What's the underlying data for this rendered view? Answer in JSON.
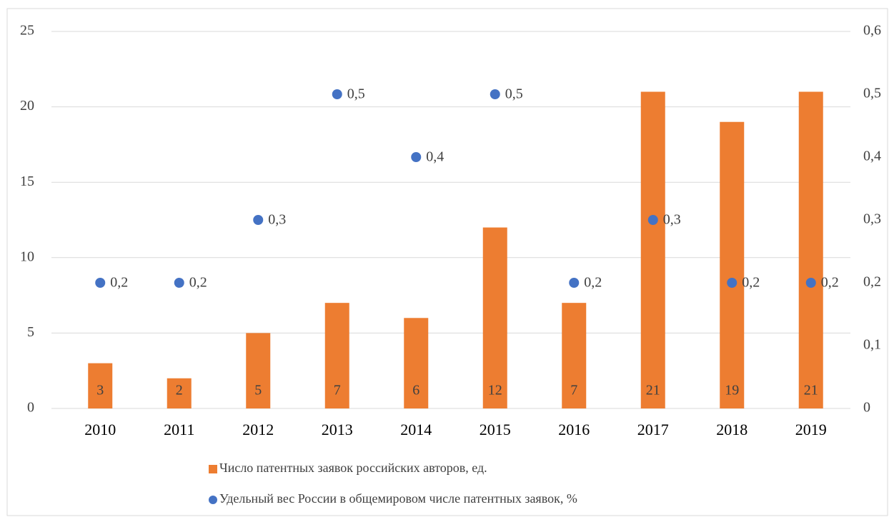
{
  "chart_data": {
    "type": "bar",
    "categories": [
      "2010",
      "2011",
      "2012",
      "2013",
      "2014",
      "2015",
      "2016",
      "2017",
      "2018",
      "2019"
    ],
    "series": [
      {
        "name": "Число патентных заявок российских авторов, ед.",
        "color": "#ed7d31",
        "type": "bar",
        "values": [
          3,
          2,
          5,
          7,
          6,
          12,
          7,
          21,
          19,
          21
        ]
      },
      {
        "name": "Удельный вес России в общемировом числе патентных заявок, %",
        "color": "#4472c4",
        "type": "scatter",
        "axis": "y2",
        "values": [
          0.2,
          0.2,
          0.3,
          0.5,
          0.4,
          0.5,
          0.2,
          0.3,
          0.2,
          0.2
        ],
        "value_labels": [
          "0,2",
          "0,2",
          "0,3",
          "0,5",
          "0,4",
          "0,5",
          "0,2",
          "0,3",
          "0,2",
          "0,2"
        ]
      }
    ],
    "ylim": [
      0,
      25
    ],
    "yticks": [
      0,
      5,
      10,
      15,
      20,
      25
    ],
    "y2lim": [
      0,
      0.6
    ],
    "y2ticks": [
      0,
      {
        "value": 0.1,
        "label": "0,1"
      },
      {
        "value": 0.2,
        "label": "0,2"
      },
      {
        "value": 0.3,
        "label": "0,3"
      },
      {
        "value": 0.4,
        "label": "0,4"
      },
      {
        "value": 0.5,
        "label": "0,5"
      },
      {
        "value": 0.6,
        "label": "0,6"
      }
    ],
    "grid": true,
    "legend": "bottom"
  }
}
